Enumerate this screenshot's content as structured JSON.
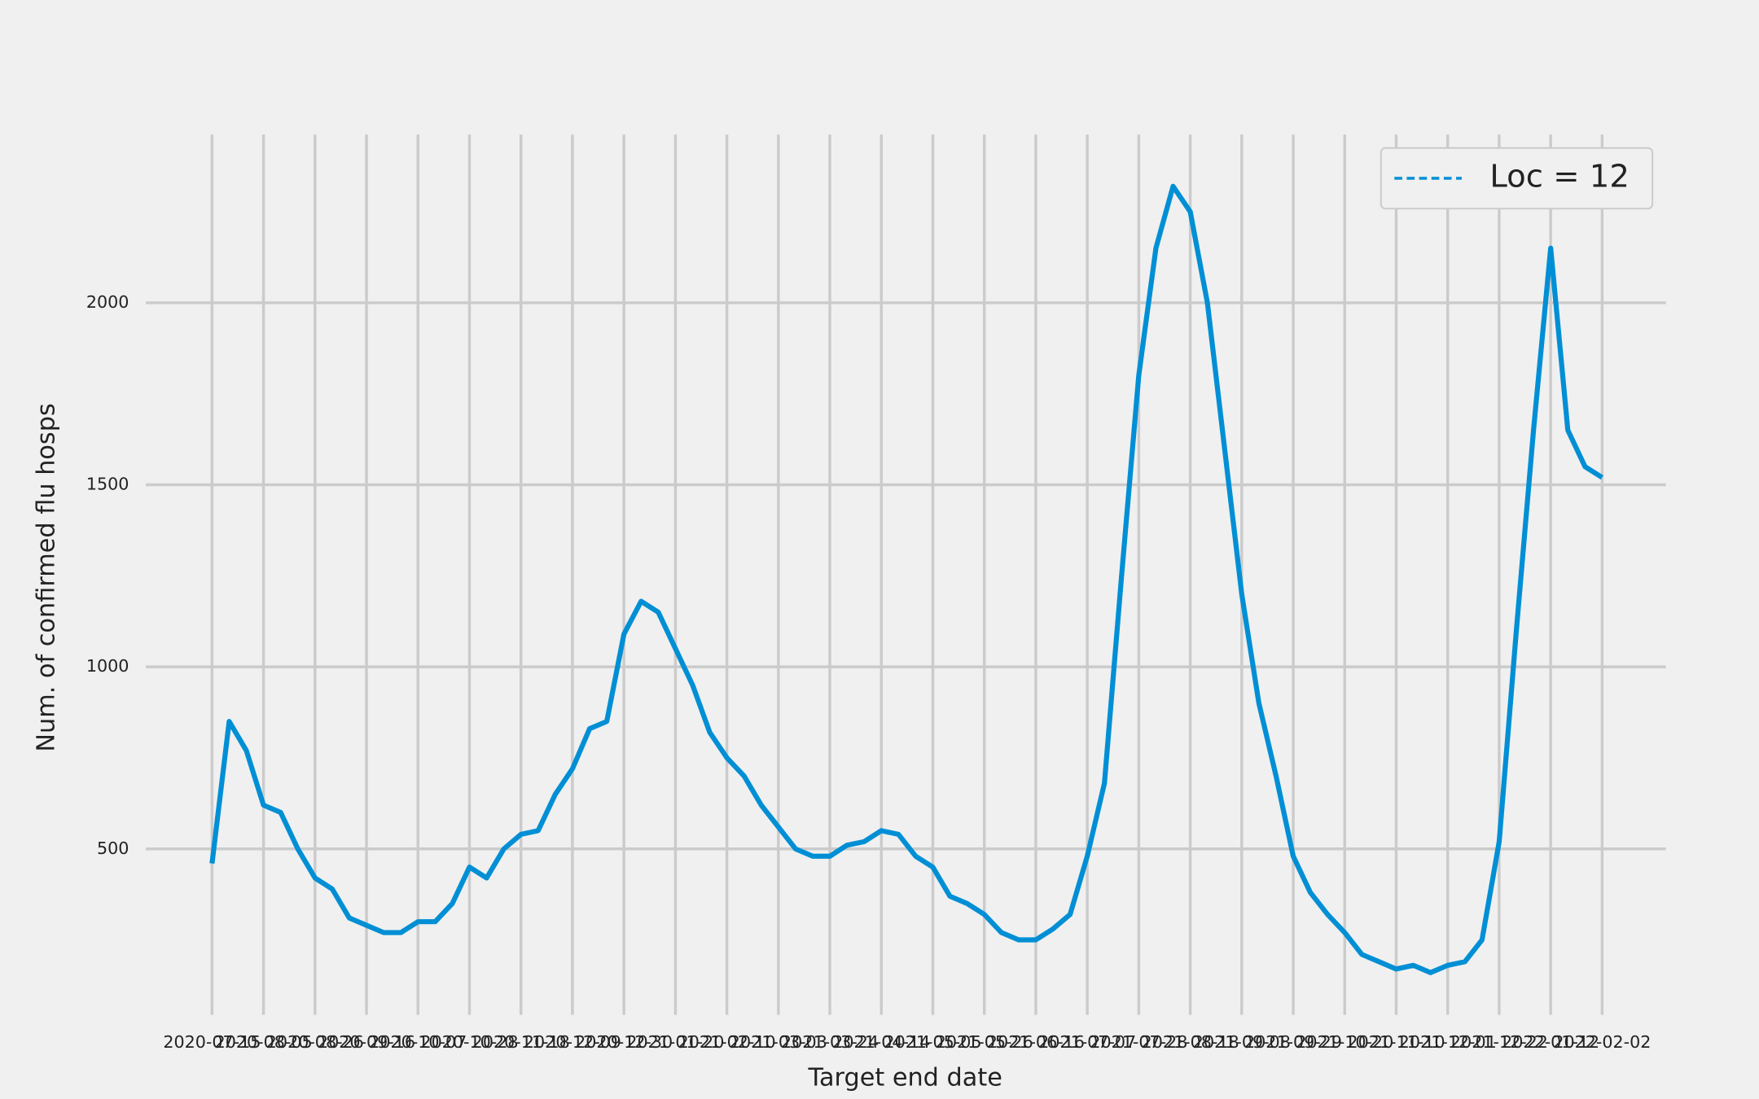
{
  "chart_data": {
    "type": "line",
    "xlabel": "Target end date",
    "ylabel": "Num. of confirmed flu hosps",
    "x": [
      "2020-07-15",
      "2020-07-22",
      "2020-07-29",
      "2020-08-05",
      "2020-08-12",
      "2020-08-19",
      "2020-08-26",
      "2020-09-02",
      "2020-09-09",
      "2020-09-16",
      "2020-09-23",
      "2020-09-30",
      "2020-10-07",
      "2020-10-14",
      "2020-10-21",
      "2020-10-28",
      "2020-11-04",
      "2020-11-11",
      "2020-11-18",
      "2020-11-25",
      "2020-12-02",
      "2020-12-09",
      "2020-12-16",
      "2020-12-23",
      "2020-12-30",
      "2021-01-06",
      "2021-01-13",
      "2021-01-20",
      "2021-01-27",
      "2021-02-03",
      "2021-02-10",
      "2021-02-17",
      "2021-02-24",
      "2021-03-03",
      "2021-03-10",
      "2021-03-17",
      "2021-03-24",
      "2021-03-31",
      "2021-04-07",
      "2021-04-14",
      "2021-04-21",
      "2021-04-28",
      "2021-05-05",
      "2021-05-12",
      "2021-05-19",
      "2021-05-26",
      "2021-06-02",
      "2021-06-09",
      "2021-06-16",
      "2021-06-23",
      "2021-06-30",
      "2021-07-07",
      "2021-07-14",
      "2021-07-21",
      "2021-07-28",
      "2021-08-04",
      "2021-08-11",
      "2021-08-18",
      "2021-08-25",
      "2021-09-01",
      "2021-09-08",
      "2021-09-15",
      "2021-09-22",
      "2021-09-29",
      "2021-10-06",
      "2021-10-13",
      "2021-10-20",
      "2021-10-27",
      "2021-11-03",
      "2021-11-10",
      "2021-11-17",
      "2021-11-24",
      "2021-12-01",
      "2021-12-08",
      "2021-12-15",
      "2021-12-22",
      "2021-12-29",
      "2022-01-05",
      "2022-01-12",
      "2022-01-19",
      "2022-01-26",
      "2022-02-02"
    ],
    "series": [
      {
        "name": "Loc = 12",
        "color": "#008fd5",
        "values": [
          460,
          850,
          770,
          620,
          600,
          500,
          420,
          390,
          310,
          290,
          270,
          270,
          300,
          300,
          350,
          450,
          420,
          500,
          540,
          550,
          650,
          720,
          830,
          850,
          1090,
          1180,
          1150,
          1050,
          950,
          820,
          750,
          700,
          620,
          560,
          500,
          480,
          480,
          510,
          520,
          550,
          540,
          480,
          450,
          370,
          350,
          320,
          270,
          250,
          250,
          280,
          320,
          480,
          680,
          1250,
          1800,
          2150,
          2320,
          2250,
          2000,
          1600,
          1200,
          900,
          700,
          480,
          380,
          320,
          270,
          210,
          190,
          170,
          180,
          160,
          180,
          190,
          250,
          520,
          1100,
          1650,
          2150,
          1650,
          1550,
          1520
        ]
      }
    ],
    "xlim": [
      "2020-06-18",
      "2022-02-28"
    ],
    "xticks": [
      "2020-07-15",
      "2020-08-05",
      "2020-08-26",
      "2020-09-16",
      "2020-10-07",
      "2020-10-28",
      "2020-11-18",
      "2020-12-09",
      "2020-12-30",
      "2021-01-20",
      "2021-02-10",
      "2021-03-03",
      "2021-03-24",
      "2021-04-14",
      "2021-05-05",
      "2021-05-26",
      "2021-06-16",
      "2021-07-07",
      "2021-07-28",
      "2021-08-18",
      "2021-09-08",
      "2021-09-29",
      "2021-10-20",
      "2021-11-10",
      "2021-12-01",
      "2021-12-22",
      "2022-01-12",
      "2022-02-02"
    ],
    "ylim": [
      44,
      2462
    ],
    "yticks": [
      500,
      1000,
      1500,
      2000
    ],
    "grid": true,
    "legend": "upper right"
  }
}
